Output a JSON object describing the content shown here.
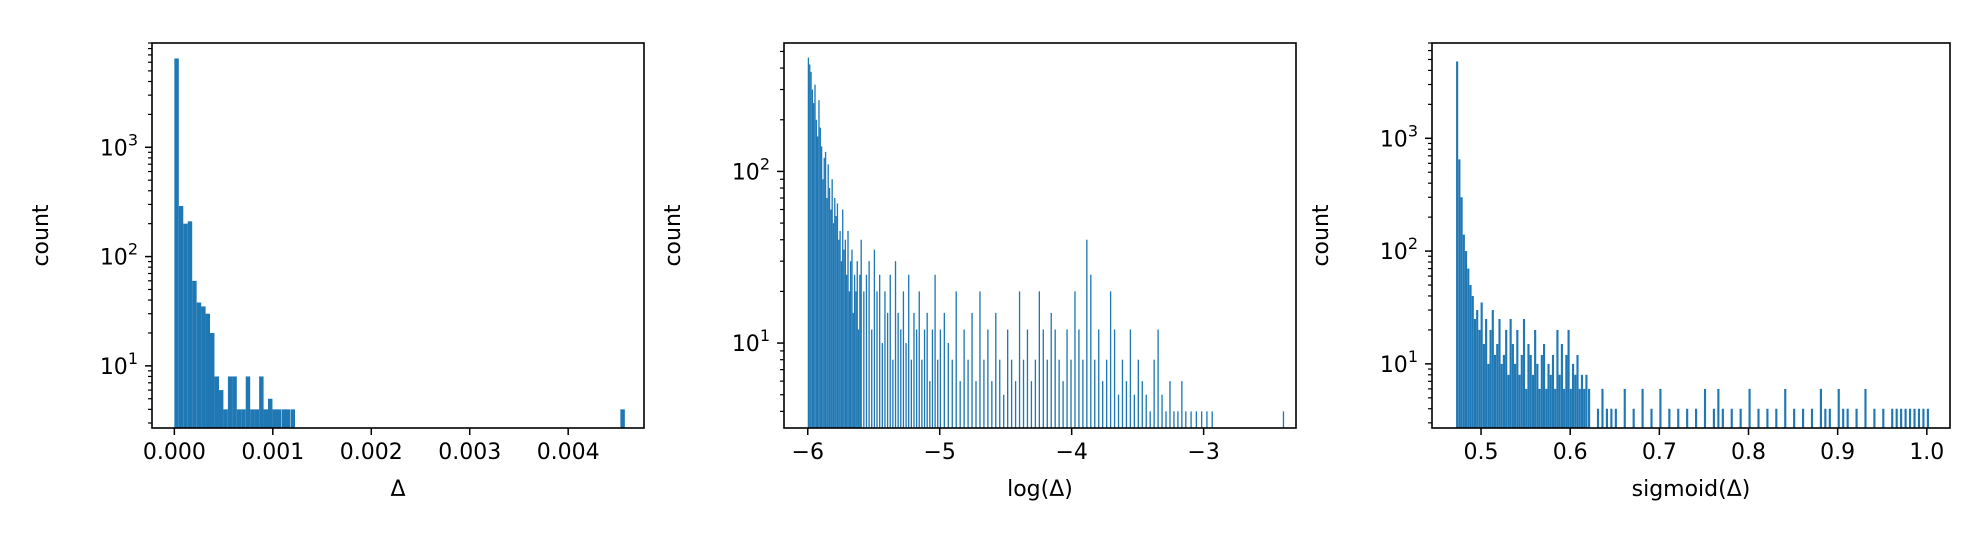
{
  "colors": {
    "bar": "#1f77b4",
    "axes": "#000000",
    "background": "#ffffff"
  },
  "chart_data": [
    {
      "type": "bar",
      "xlabel": "Δ",
      "ylabel": "count",
      "yscale": "log",
      "grid": false,
      "xlim": [
        -0.000227,
        0.00477
      ],
      "ylim": [
        2.7,
        9000
      ],
      "xticks": [
        {
          "value": 0.0,
          "label": "0.000"
        },
        {
          "value": 0.001,
          "label": "0.001"
        },
        {
          "value": 0.002,
          "label": "0.002"
        },
        {
          "value": 0.003,
          "label": "0.003"
        },
        {
          "value": 0.004,
          "label": "0.004"
        }
      ],
      "yticks": [
        {
          "value": 10,
          "label": "10",
          "exp": "1"
        },
        {
          "value": 100,
          "label": "10",
          "exp": "2"
        },
        {
          "value": 1000,
          "label": "10",
          "exp": "3"
        }
      ],
      "bin_width": 4.53e-05,
      "series": [
        {
          "x": [
            0.0,
            4.53e-05,
            9.06e-05,
            0.000136,
            0.000181,
            0.000227,
            0.000272,
            0.000317,
            0.000362,
            0.000408,
            0.000453,
            0.000498,
            0.000544,
            0.000589,
            0.000634,
            0.000679,
            0.000725,
            0.00077,
            0.000815,
            0.000861,
            0.000906,
            0.000951,
            0.000997,
            0.00104,
            0.00109,
            0.00113,
            0.00118,
            0.00453
          ],
          "values": [
            6500,
            290,
            200,
            210,
            60,
            38,
            35,
            30,
            20,
            8,
            6,
            4,
            8,
            8,
            4,
            4,
            8,
            4,
            4,
            8,
            4,
            5,
            4,
            4,
            4,
            4,
            4,
            4
          ]
        }
      ]
    },
    {
      "type": "bar",
      "xlabel": "log(Δ)",
      "ylabel": "count",
      "yscale": "log",
      "grid": false,
      "xlim": [
        -6.18,
        -2.3
      ],
      "ylim": [
        3.2,
        560
      ],
      "xticks": [
        {
          "value": -6,
          "label": "−6"
        },
        {
          "value": -5,
          "label": "−5"
        },
        {
          "value": -4,
          "label": "−4"
        },
        {
          "value": -3,
          "label": "−3"
        }
      ],
      "yticks": [
        {
          "value": 10,
          "label": "10",
          "exp": "1"
        },
        {
          "value": 100,
          "label": "10",
          "exp": "2"
        }
      ],
      "bin_width": 0.01,
      "series": [
        {
          "x": [
            -6.0,
            -5.99,
            -5.98,
            -5.97,
            -5.96,
            -5.95,
            -5.94,
            -5.93,
            -5.92,
            -5.91,
            -5.9,
            -5.89,
            -5.88,
            -5.87,
            -5.86,
            -5.85,
            -5.84,
            -5.83,
            -5.82,
            -5.81,
            -5.8,
            -5.79,
            -5.78,
            -5.77,
            -5.76,
            -5.75,
            -5.74,
            -5.73,
            -5.72,
            -5.71,
            -5.7,
            -5.69,
            -5.68,
            -5.67,
            -5.66,
            -5.65,
            -5.64,
            -5.63,
            -5.62,
            -5.61,
            -5.6,
            -5.58,
            -5.56,
            -5.54,
            -5.52,
            -5.5,
            -5.48,
            -5.46,
            -5.44,
            -5.42,
            -5.4,
            -5.38,
            -5.36,
            -5.34,
            -5.32,
            -5.3,
            -5.28,
            -5.26,
            -5.24,
            -5.22,
            -5.2,
            -5.18,
            -5.16,
            -5.14,
            -5.12,
            -5.1,
            -5.08,
            -5.06,
            -5.04,
            -5.02,
            -5.0,
            -4.97,
            -4.94,
            -4.91,
            -4.88,
            -4.85,
            -4.82,
            -4.79,
            -4.76,
            -4.73,
            -4.7,
            -4.67,
            -4.64,
            -4.61,
            -4.58,
            -4.55,
            -4.52,
            -4.49,
            -4.46,
            -4.43,
            -4.4,
            -4.37,
            -4.34,
            -4.31,
            -4.28,
            -4.25,
            -4.22,
            -4.19,
            -4.16,
            -4.13,
            -4.1,
            -4.07,
            -4.04,
            -4.01,
            -3.98,
            -3.95,
            -3.92,
            -3.89,
            -3.86,
            -3.83,
            -3.8,
            -3.77,
            -3.74,
            -3.71,
            -3.68,
            -3.65,
            -3.62,
            -3.59,
            -3.56,
            -3.53,
            -3.5,
            -3.47,
            -3.44,
            -3.41,
            -3.38,
            -3.35,
            -3.32,
            -3.29,
            -3.26,
            -3.23,
            -3.2,
            -3.17,
            -3.14,
            -3.1,
            -3.06,
            -3.02,
            -2.98,
            -2.94,
            -2.4
          ],
          "values": [
            460,
            420,
            380,
            300,
            250,
            320,
            200,
            160,
            260,
            180,
            140,
            90,
            120,
            130,
            70,
            110,
            80,
            60,
            90,
            50,
            70,
            55,
            65,
            40,
            45,
            30,
            60,
            35,
            40,
            25,
            45,
            20,
            30,
            35,
            15,
            25,
            20,
            30,
            12,
            25,
            40,
            20,
            25,
            30,
            12,
            35,
            20,
            25,
            10,
            20,
            15,
            25,
            8,
            30,
            15,
            12,
            20,
            10,
            25,
            8,
            15,
            12,
            20,
            8,
            12,
            15,
            6,
            12,
            25,
            8,
            12,
            15,
            10,
            8,
            20,
            6,
            12,
            8,
            15,
            6,
            20,
            8,
            12,
            6,
            15,
            8,
            5,
            12,
            8,
            6,
            20,
            8,
            12,
            6,
            8,
            20,
            12,
            8,
            15,
            12,
            8,
            6,
            12,
            8,
            20,
            12,
            8,
            40,
            25,
            8,
            12,
            6,
            8,
            20,
            12,
            5,
            8,
            6,
            12,
            5,
            8,
            6,
            5,
            4,
            8,
            12,
            5,
            4,
            6,
            4,
            4,
            6,
            4,
            4,
            4,
            4,
            4,
            4,
            4
          ],
          "note_series": ""
        }
      ]
    },
    {
      "type": "bar",
      "xlabel": "sigmoid(Δ)",
      "ylabel": "count",
      "yscale": "log",
      "grid": false,
      "xlim": [
        0.445,
        1.026
      ],
      "ylim": [
        2.7,
        7000
      ],
      "xticks": [
        {
          "value": 0.5,
          "label": "0.5"
        },
        {
          "value": 0.6,
          "label": "0.6"
        },
        {
          "value": 0.7,
          "label": "0.7"
        },
        {
          "value": 0.8,
          "label": "0.8"
        },
        {
          "value": 0.9,
          "label": "0.9"
        },
        {
          "value": 1.0,
          "label": "1.0"
        }
      ],
      "yticks": [
        {
          "value": 10,
          "label": "10",
          "exp": "1"
        },
        {
          "value": 100,
          "label": "10",
          "exp": "2"
        },
        {
          "value": 1000,
          "label": "10",
          "exp": "3"
        }
      ],
      "bin_width": 0.0024,
      "series": [
        {
          "x": [
            0.472,
            0.4745,
            0.477,
            0.4795,
            0.482,
            0.4845,
            0.487,
            0.4895,
            0.492,
            0.4945,
            0.497,
            0.4995,
            0.502,
            0.5045,
            0.507,
            0.5095,
            0.512,
            0.5145,
            0.517,
            0.5195,
            0.522,
            0.5245,
            0.527,
            0.5295,
            0.532,
            0.5345,
            0.537,
            0.5395,
            0.542,
            0.5445,
            0.547,
            0.5495,
            0.552,
            0.5545,
            0.557,
            0.5595,
            0.562,
            0.5645,
            0.567,
            0.5695,
            0.572,
            0.5745,
            0.577,
            0.5795,
            0.582,
            0.5845,
            0.587,
            0.5895,
            0.592,
            0.5945,
            0.597,
            0.5995,
            0.602,
            0.6045,
            0.607,
            0.6095,
            0.612,
            0.6145,
            0.617,
            0.62,
            0.63,
            0.635,
            0.64,
            0.645,
            0.65,
            0.66,
            0.67,
            0.68,
            0.69,
            0.7,
            0.71,
            0.72,
            0.73,
            0.74,
            0.75,
            0.76,
            0.765,
            0.77,
            0.78,
            0.79,
            0.8,
            0.81,
            0.82,
            0.83,
            0.84,
            0.85,
            0.86,
            0.87,
            0.88,
            0.885,
            0.89,
            0.9,
            0.905,
            0.91,
            0.92,
            0.93,
            0.94,
            0.95,
            0.96,
            0.965,
            0.97,
            0.975,
            0.98,
            0.985,
            0.99,
            0.995,
            1.0
          ],
          "values": [
            4800,
            650,
            300,
            140,
            100,
            70,
            50,
            40,
            25,
            30,
            20,
            35,
            15,
            25,
            10,
            20,
            30,
            12,
            15,
            25,
            10,
            12,
            20,
            8,
            25,
            15,
            10,
            20,
            8,
            12,
            25,
            6,
            15,
            12,
            8,
            20,
            10,
            6,
            12,
            15,
            6,
            10,
            8,
            12,
            6,
            20,
            8,
            15,
            6,
            12,
            20,
            6,
            10,
            8,
            12,
            6,
            8,
            6,
            8,
            6,
            4,
            6,
            4,
            4,
            4,
            6,
            4,
            6,
            4,
            6,
            4,
            4,
            4,
            4,
            6,
            4,
            6,
            4,
            4,
            4,
            6,
            4,
            4,
            4,
            6,
            4,
            4,
            4,
            6,
            4,
            4,
            6,
            4,
            4,
            4,
            6,
            4,
            4,
            4,
            4,
            4,
            4,
            4,
            4,
            4,
            4,
            4
          ]
        }
      ]
    }
  ]
}
